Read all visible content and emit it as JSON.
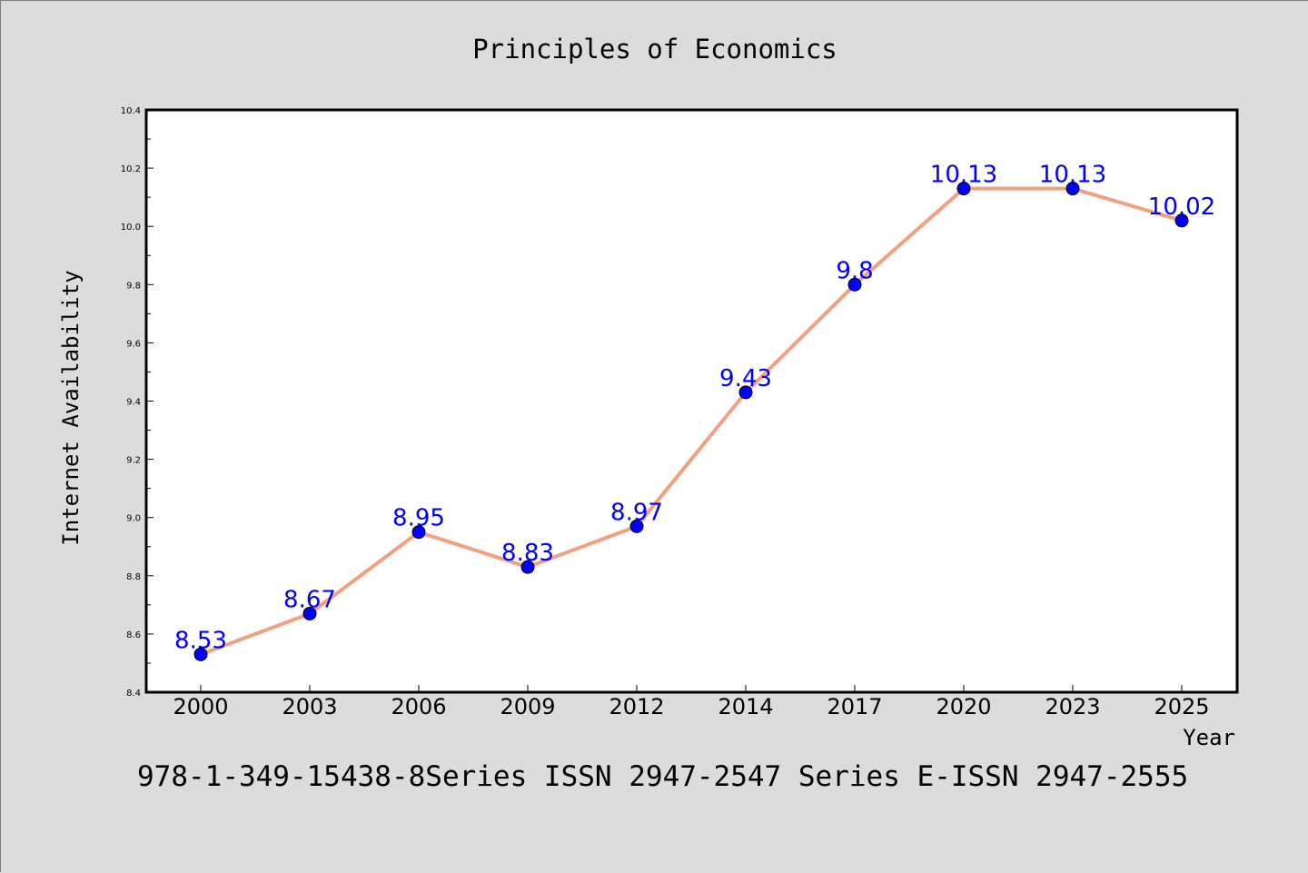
{
  "chart_data": {
    "type": "line",
    "title": "Principles of Economics",
    "xlabel": "Year",
    "ylabel": "Internet Availability",
    "categories": [
      "2000",
      "2003",
      "2006",
      "2009",
      "2012",
      "2014",
      "2017",
      "2020",
      "2023",
      "2025"
    ],
    "values": [
      8.53,
      8.67,
      8.95,
      8.83,
      8.97,
      9.43,
      9.8,
      10.13,
      10.13,
      10.02
    ],
    "data_labels": [
      "8.53",
      "8.67",
      "8.95",
      "8.83",
      "8.97",
      "9.43",
      "9.8",
      "10.13",
      "10.13",
      "10.02"
    ],
    "ylim": [
      8.4,
      10.4
    ],
    "y_ticks": [
      "8.4",
      "8.6",
      "8.8",
      "9.0",
      "9.2",
      "9.4",
      "9.6",
      "9.8",
      "10.0",
      "10.2",
      "10.4"
    ],
    "grid": false,
    "legend": "none",
    "line_color": "#f4a07f",
    "marker_color": "#0000ff",
    "label_color": "#0000ff",
    "background_color": "#dcdcdc",
    "plot_background_color": "#ffffff"
  },
  "footer": {
    "text": "978-1-349-15438-8Series ISSN 2947-2547 Series E-ISSN 2947-2555"
  }
}
